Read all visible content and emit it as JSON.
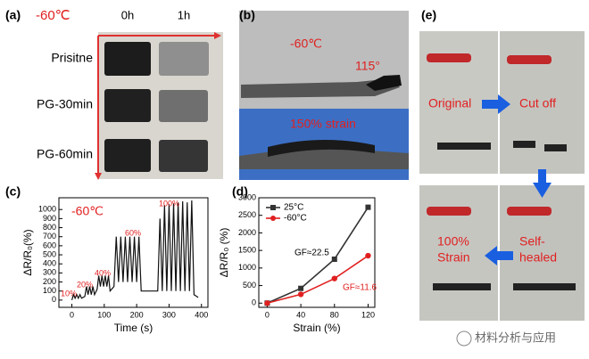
{
  "panel_labels": [
    "(a)",
    "(b)",
    "(c)",
    "(d)",
    "(e)"
  ],
  "panel_a": {
    "temperature": "-60℃",
    "columns": [
      "0h",
      "1h"
    ],
    "rows": [
      "Prisitne",
      "PG-30min",
      "PG-60min"
    ]
  },
  "panel_b": {
    "temperature": "-60℃",
    "angle": "115°",
    "strain": "150% strain"
  },
  "panel_c": {
    "type": "line",
    "temperature": "-60℃",
    "xlabel": "Time (s)",
    "ylabel": "ΔR/R₀(%)",
    "annotations": [
      "10%",
      "20%",
      "40%",
      "60%",
      "100%"
    ],
    "x": [
      0,
      5,
      10,
      15,
      20,
      25,
      30,
      40,
      45,
      50,
      55,
      60,
      65,
      70,
      78,
      83,
      88,
      93,
      98,
      103,
      108,
      113,
      118,
      130,
      137,
      144,
      151,
      158,
      165,
      172,
      179,
      186,
      193,
      200,
      207,
      214,
      265,
      272,
      279,
      286,
      293,
      300,
      307,
      314,
      321,
      328,
      335,
      342,
      349,
      356,
      363,
      370,
      377,
      390
    ],
    "series": [
      {
        "color": "#111111",
        "values": [
          0,
          60,
          20,
          60,
          20,
          60,
          20,
          40,
          150,
          60,
          150,
          60,
          150,
          60,
          120,
          270,
          150,
          270,
          150,
          270,
          150,
          270,
          100,
          150,
          700,
          200,
          700,
          200,
          700,
          200,
          700,
          200,
          700,
          200,
          700,
          100,
          100,
          900,
          100,
          1050,
          100,
          1060,
          100,
          1070,
          100,
          1080,
          100,
          1090,
          100,
          1080,
          100,
          1100,
          60,
          30
        ]
      }
    ],
    "xlim": [
      -40,
      420
    ],
    "xticks": [
      0,
      100,
      200,
      300,
      400
    ],
    "ylim": [
      -80,
      1130
    ],
    "yticks": [
      0,
      100,
      200,
      300,
      400,
      500,
      600,
      700,
      800,
      900,
      1000
    ]
  },
  "panel_d": {
    "type": "line",
    "xlabel": "Strain (%)",
    "ylabel": "ΔR/R₀ (%)",
    "x": [
      0,
      40,
      80,
      120
    ],
    "series": [
      {
        "name": "25°C",
        "color": "#333333",
        "marker": "square",
        "values": [
          0,
          420,
          1250,
          2730
        ]
      },
      {
        "name": "-60°C",
        "color": "#e02020",
        "marker": "circle",
        "values": [
          0,
          250,
          700,
          1350
        ]
      }
    ],
    "annotations": [
      "GF≈22.5",
      "GF≈11.6"
    ],
    "xlim": [
      -10,
      128
    ],
    "xticks": [
      0,
      40,
      80,
      120
    ],
    "ylim": [
      -120,
      3000
    ],
    "yticks": [
      0,
      500,
      1000,
      1500,
      2000,
      2500,
      3000
    ]
  },
  "panel_e": {
    "original": "Original",
    "cut_off": "Cut off",
    "self_healed": [
      "Self-",
      "healed"
    ],
    "strain": [
      "100%",
      "Strain"
    ]
  },
  "watermark": "材料分析与应用"
}
